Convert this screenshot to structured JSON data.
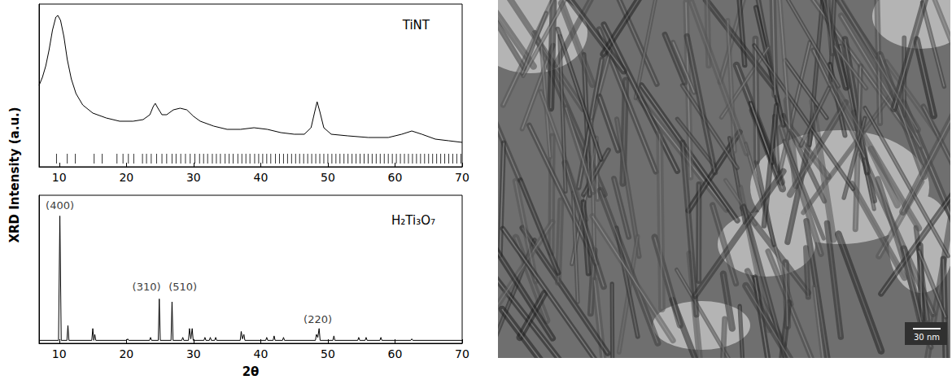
{
  "ylabel": "XRD Intensity (a.u.)",
  "chart_data": [
    {
      "type": "line",
      "title": "TiNT",
      "color": "#000000",
      "marker": "none",
      "line_style": "solid",
      "tick_labels": "x",
      "grid": false,
      "xlim": [
        7,
        70
      ],
      "xticks": [
        10,
        20,
        30,
        40,
        50,
        60,
        70
      ],
      "ylim": [
        0,
        100
      ],
      "yticks": [],
      "x": [
        7,
        7.5,
        8,
        8.5,
        9,
        9.5,
        9.8,
        10.2,
        10.7,
        11.2,
        11.8,
        12.5,
        13.5,
        15,
        17,
        19,
        21,
        22.5,
        23.5,
        24.0,
        24.3,
        24.7,
        25.3,
        26,
        27,
        28,
        29,
        30,
        31,
        33,
        35,
        37,
        39,
        41,
        43,
        45,
        46.5,
        47.5,
        48.0,
        48.4,
        48.8,
        49.4,
        50.5,
        53,
        56,
        59,
        61,
        62.5,
        64,
        66,
        68,
        70
      ],
      "values": [
        50,
        55,
        62,
        72,
        84,
        92,
        93,
        90,
        80,
        66,
        54,
        45,
        38,
        33,
        30,
        28,
        28,
        29,
        32,
        37,
        39,
        36,
        32,
        32,
        35,
        36,
        35,
        31,
        28,
        25,
        23,
        23,
        24,
        23,
        21,
        20,
        20,
        24,
        33,
        40,
        34,
        24,
        20,
        19,
        18,
        18,
        20,
        22,
        20,
        17,
        16,
        15
      ],
      "reference_ticks": [
        9.6,
        11.2,
        12.4,
        15.2,
        16.4,
        18.6,
        19.5,
        20.3,
        21.1,
        22.4,
        23.0,
        23.7,
        24.5,
        25.3,
        26.0,
        26.8,
        27.4,
        28.1,
        28.8,
        29.5,
        30.2,
        30.9,
        31.5,
        32.1,
        32.8,
        33.4,
        34.0,
        34.7,
        35.3,
        35.9,
        36.6,
        37.2,
        37.8,
        38.4,
        39.1,
        39.7,
        40.3,
        40.9,
        41.5,
        42.2,
        42.8,
        43.4,
        44.0,
        44.6,
        45.2,
        45.8,
        46.4,
        47.0,
        47.6,
        48.2,
        48.8,
        49.4,
        50.0,
        50.6,
        51.2,
        51.8,
        52.4,
        53.0,
        53.6,
        54.2,
        54.8,
        55.4,
        56.0,
        56.6,
        57.2,
        57.8,
        58.4,
        59.0,
        59.6,
        60.2,
        60.8,
        61.4,
        62.0,
        62.6,
        63.2,
        63.8,
        64.4,
        65.0,
        65.6,
        66.2,
        66.8,
        67.4,
        68.0,
        68.6,
        69.2,
        69.8
      ]
    },
    {
      "type": "line",
      "title": "H₂Ti₃O₇",
      "xlabel": "2θ",
      "color": "#000000",
      "marker": "none",
      "line_style": "solid",
      "tick_labels": "x",
      "grid": false,
      "xlim": [
        7,
        70
      ],
      "xticks": [
        10,
        20,
        30,
        40,
        50,
        60,
        70
      ],
      "ylim": [
        0,
        100
      ],
      "yticks": [],
      "x": [
        7,
        9.9,
        10.1,
        10.3,
        11.15,
        11.3,
        11.45,
        14.85,
        15.0,
        15.15,
        15.3,
        15.45,
        20.05,
        20.2,
        20.35,
        23.45,
        23.6,
        23.75,
        24.75,
        24.9,
        25.05,
        26.65,
        26.8,
        26.95,
        28.25,
        28.4,
        28.55,
        29.25,
        29.4,
        29.6,
        29.8,
        29.95,
        31.55,
        31.7,
        31.85,
        32.35,
        32.5,
        32.65,
        33.15,
        33.3,
        33.45,
        36.95,
        37.1,
        37.3,
        37.5,
        37.65,
        40.75,
        40.9,
        41.05,
        41.85,
        42.0,
        42.15,
        43.25,
        43.4,
        43.55,
        48.15,
        48.3,
        48.5,
        48.7,
        48.85,
        50.75,
        50.9,
        51.05,
        54.45,
        54.6,
        54.75,
        55.55,
        55.7,
        55.85,
        57.75,
        57.9,
        58.05,
        62.35,
        62.5,
        62.65,
        70
      ],
      "values": [
        2,
        2,
        86,
        2,
        2,
        12,
        2,
        2,
        10,
        2,
        6,
        2,
        2,
        3,
        2,
        2,
        4,
        2,
        2,
        30,
        2,
        2,
        28,
        2,
        2,
        4,
        2,
        2,
        10,
        3,
        10,
        2,
        2,
        4,
        2,
        2,
        4,
        2,
        2,
        4,
        2,
        2,
        8,
        3,
        6,
        2,
        2,
        4,
        2,
        2,
        5,
        2,
        2,
        4,
        2,
        2,
        6,
        4,
        10,
        2,
        2,
        5,
        2,
        2,
        4,
        2,
        2,
        4,
        2,
        2,
        4,
        2,
        2,
        3,
        2,
        2
      ],
      "annotations": [
        {
          "text": "(400)",
          "x": 10.1,
          "y": 93
        },
        {
          "text": "(310)",
          "x": 23.0,
          "y": 38
        },
        {
          "text": "(510)",
          "x": 28.4,
          "y": 38
        },
        {
          "text": "(220)",
          "x": 48.5,
          "y": 16
        }
      ]
    }
  ],
  "micrograph": {
    "scale_bar": "30 nm"
  }
}
